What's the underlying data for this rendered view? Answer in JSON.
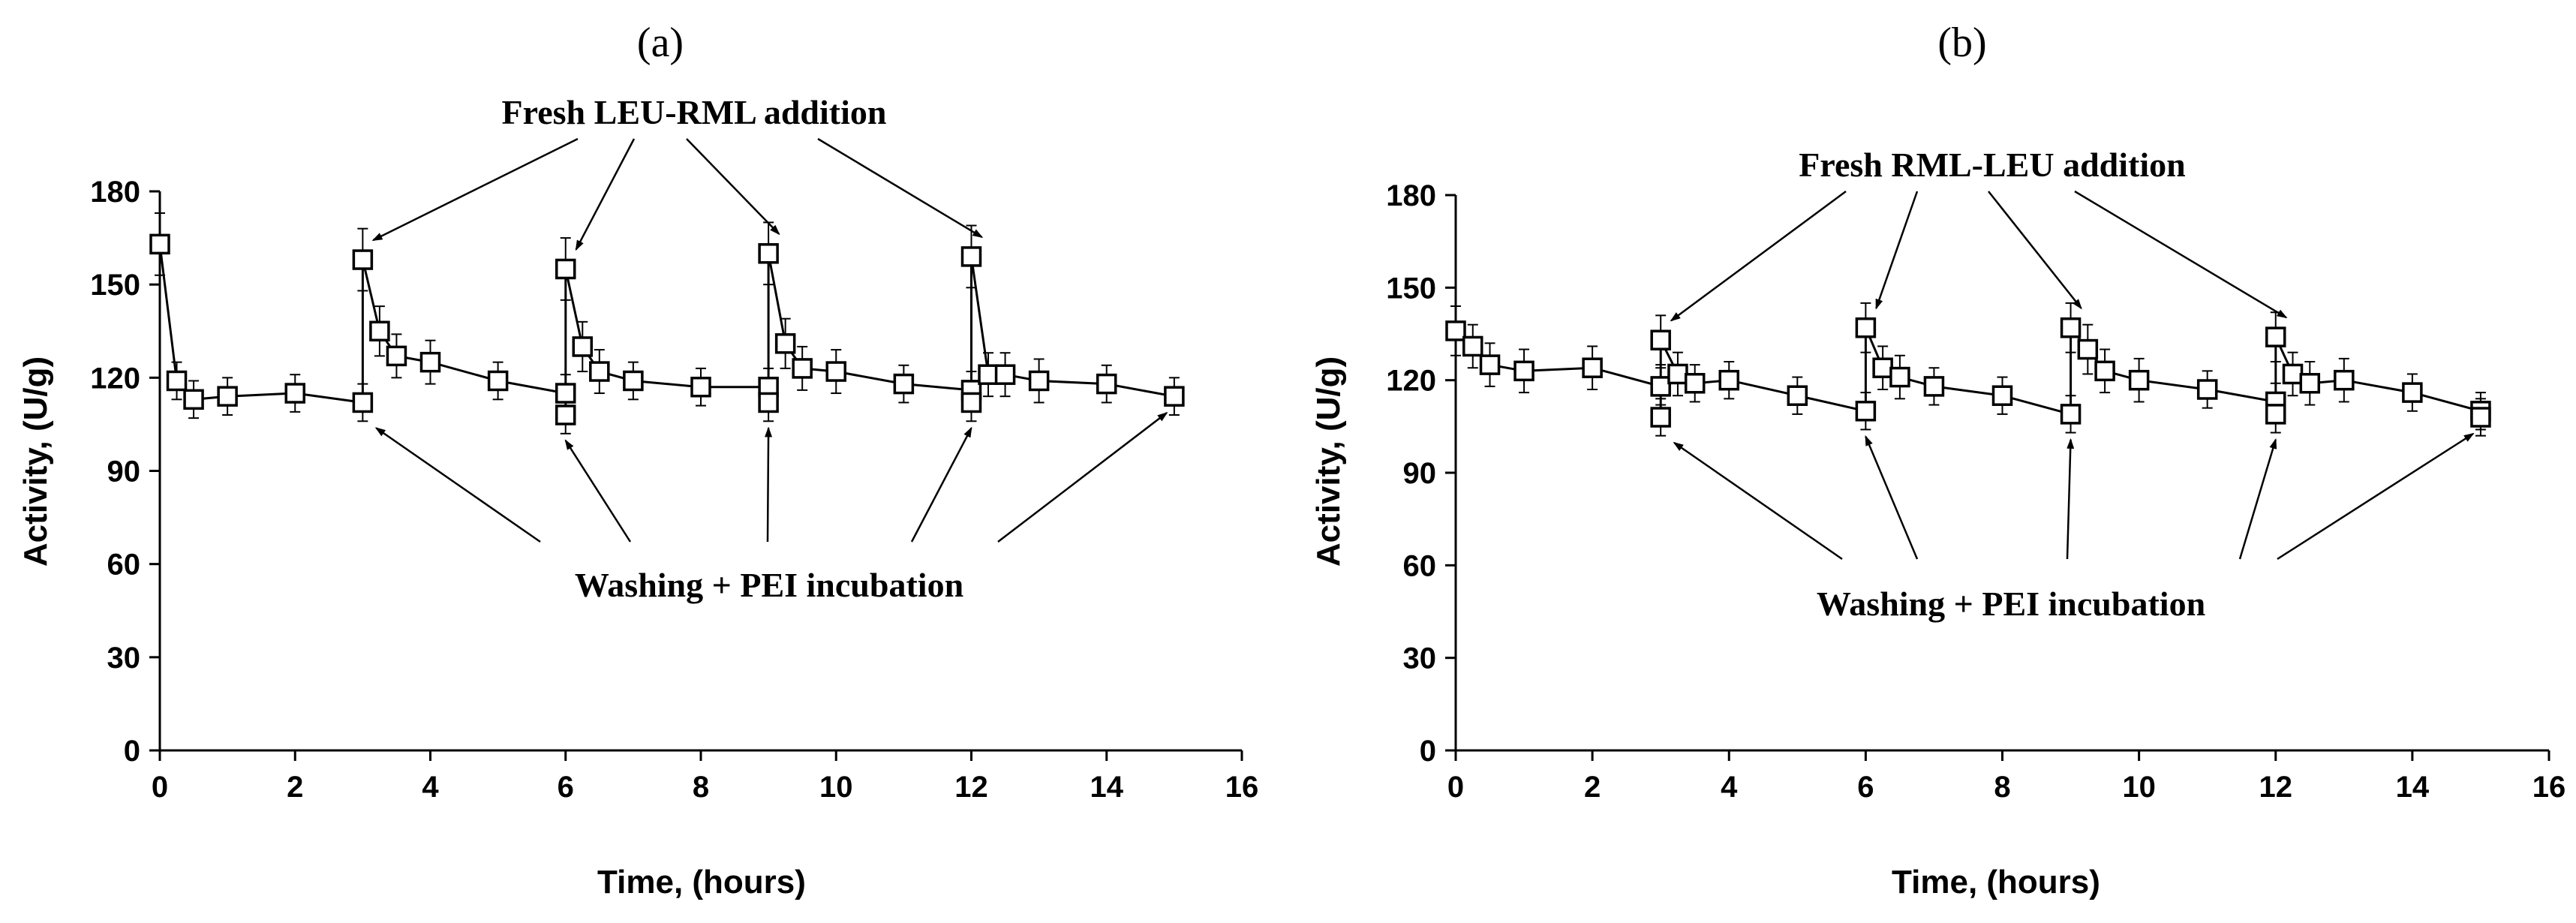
{
  "chart_data": [
    {
      "type": "line",
      "panel_label": "(a)",
      "xlabel": "Time, (hours)",
      "ylabel": "Activity, (U/g)",
      "xlim": [
        0,
        16
      ],
      "ylim": [
        0,
        180
      ],
      "xticks": [
        "0",
        "2",
        "4",
        "6",
        "8",
        "10",
        "12",
        "14",
        "16"
      ],
      "yticks": [
        "0",
        "30",
        "60",
        "90",
        "120",
        "150",
        "180"
      ],
      "grid": false,
      "series": [
        {
          "name": "LEU-RML",
          "points": [
            {
              "x": 0,
              "y": 163,
              "err": 10
            },
            {
              "x": 0.25,
              "y": 119,
              "err": 6
            },
            {
              "x": 0.5,
              "y": 113,
              "err": 6
            },
            {
              "x": 1,
              "y": 114,
              "err": 6
            },
            {
              "x": 2,
              "y": 115,
              "err": 6
            },
            {
              "x": 3,
              "y": 112,
              "err": 6
            },
            {
              "x": 3,
              "y": 158,
              "err": 10
            },
            {
              "x": 3.25,
              "y": 135,
              "err": 8
            },
            {
              "x": 3.5,
              "y": 127,
              "err": 7
            },
            {
              "x": 4,
              "y": 125,
              "err": 7
            },
            {
              "x": 5,
              "y": 119,
              "err": 6
            },
            {
              "x": 6,
              "y": 115,
              "err": 6
            },
            {
              "x": 6,
              "y": 108,
              "err": 6
            },
            {
              "x": 6,
              "y": 155,
              "err": 10
            },
            {
              "x": 6.25,
              "y": 130,
              "err": 8
            },
            {
              "x": 6.5,
              "y": 122,
              "err": 7
            },
            {
              "x": 7,
              "y": 119,
              "err": 6
            },
            {
              "x": 8,
              "y": 117,
              "err": 6
            },
            {
              "x": 9,
              "y": 117,
              "err": 6
            },
            {
              "x": 9,
              "y": 112,
              "err": 6
            },
            {
              "x": 9,
              "y": 160,
              "err": 10
            },
            {
              "x": 9.25,
              "y": 131,
              "err": 8
            },
            {
              "x": 9.5,
              "y": 123,
              "err": 7
            },
            {
              "x": 10,
              "y": 122,
              "err": 7
            },
            {
              "x": 11,
              "y": 118,
              "err": 6
            },
            {
              "x": 12,
              "y": 116,
              "err": 6
            },
            {
              "x": 12,
              "y": 112,
              "err": 6
            },
            {
              "x": 12,
              "y": 159,
              "err": 10
            },
            {
              "x": 12.25,
              "y": 121,
              "err": 7
            },
            {
              "x": 12.5,
              "y": 121,
              "err": 7
            },
            {
              "x": 13,
              "y": 119,
              "err": 7
            },
            {
              "x": 14,
              "y": 118,
              "err": 6
            },
            {
              "x": 15,
              "y": 114,
              "err": 6
            }
          ]
        }
      ],
      "annotations": {
        "top": {
          "text": "Fresh LEU-RML addition",
          "targets": [
            3,
            6,
            9,
            12
          ]
        },
        "bottom": {
          "text": "Washing + PEI incubation",
          "targets": [
            3,
            6,
            9,
            12,
            15
          ]
        }
      }
    },
    {
      "type": "line",
      "panel_label": "(b)",
      "xlabel": "Time, (hours)",
      "ylabel": "Activity, (U/g)",
      "xlim": [
        0,
        16
      ],
      "ylim": [
        0,
        180
      ],
      "xticks": [
        "0",
        "2",
        "4",
        "6",
        "8",
        "10",
        "12",
        "14",
        "16"
      ],
      "yticks": [
        "0",
        "30",
        "60",
        "90",
        "120",
        "150",
        "180"
      ],
      "grid": false,
      "series": [
        {
          "name": "RML-LEU",
          "points": [
            {
              "x": 0,
              "y": 136,
              "err": 8
            },
            {
              "x": 0.25,
              "y": 131,
              "err": 7
            },
            {
              "x": 0.5,
              "y": 125,
              "err": 7
            },
            {
              "x": 1,
              "y": 123,
              "err": 7
            },
            {
              "x": 2,
              "y": 124,
              "err": 7
            },
            {
              "x": 3,
              "y": 118,
              "err": 6
            },
            {
              "x": 3,
              "y": 108,
              "err": 6
            },
            {
              "x": 3,
              "y": 133,
              "err": 8
            },
            {
              "x": 3.25,
              "y": 122,
              "err": 7
            },
            {
              "x": 3.5,
              "y": 119,
              "err": 6
            },
            {
              "x": 4,
              "y": 120,
              "err": 6
            },
            {
              "x": 5,
              "y": 115,
              "err": 6
            },
            {
              "x": 6,
              "y": 110,
              "err": 6
            },
            {
              "x": 6,
              "y": 137,
              "err": 8
            },
            {
              "x": 6.25,
              "y": 124,
              "err": 7
            },
            {
              "x": 6.5,
              "y": 121,
              "err": 7
            },
            {
              "x": 7,
              "y": 118,
              "err": 6
            },
            {
              "x": 8,
              "y": 115,
              "err": 6
            },
            {
              "x": 9,
              "y": 109,
              "err": 6
            },
            {
              "x": 9,
              "y": 137,
              "err": 8
            },
            {
              "x": 9.25,
              "y": 130,
              "err": 8
            },
            {
              "x": 9.5,
              "y": 123,
              "err": 7
            },
            {
              "x": 10,
              "y": 120,
              "err": 7
            },
            {
              "x": 11,
              "y": 117,
              "err": 6
            },
            {
              "x": 12,
              "y": 113,
              "err": 6
            },
            {
              "x": 12,
              "y": 109,
              "err": 6
            },
            {
              "x": 12,
              "y": 134,
              "err": 8
            },
            {
              "x": 12.25,
              "y": 122,
              "err": 7
            },
            {
              "x": 12.5,
              "y": 119,
              "err": 7
            },
            {
              "x": 13,
              "y": 120,
              "err": 7
            },
            {
              "x": 14,
              "y": 116,
              "err": 6
            },
            {
              "x": 15,
              "y": 110,
              "err": 6
            },
            {
              "x": 15,
              "y": 108,
              "err": 6
            }
          ]
        }
      ],
      "annotations": {
        "top": {
          "text": "Fresh RML-LEU addition",
          "targets": [
            3,
            6,
            9,
            12
          ]
        },
        "bottom": {
          "text": "Washing + PEI incubation",
          "targets": [
            3,
            6,
            9,
            12,
            15
          ]
        }
      }
    }
  ]
}
